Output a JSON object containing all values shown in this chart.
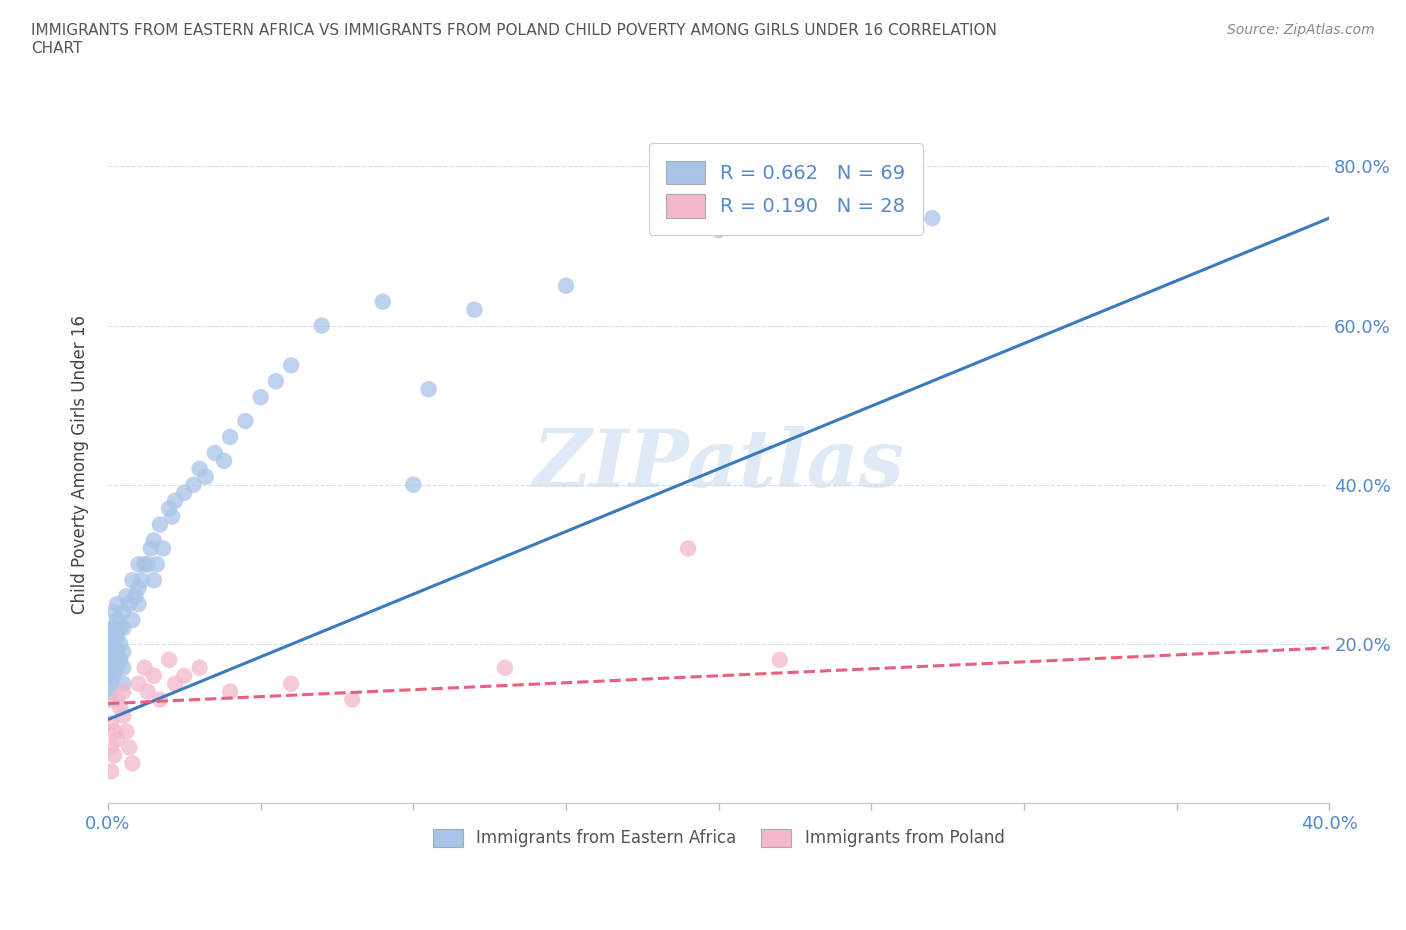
{
  "title": "IMMIGRANTS FROM EASTERN AFRICA VS IMMIGRANTS FROM POLAND CHILD POVERTY AMONG GIRLS UNDER 16 CORRELATION\nCHART",
  "source": "Source: ZipAtlas.com",
  "ylabel": "Child Poverty Among Girls Under 16",
  "xlim": [
    0.0,
    0.4
  ],
  "ylim": [
    0.0,
    0.85
  ],
  "xticks": [
    0.0,
    0.05,
    0.1,
    0.15,
    0.2,
    0.25,
    0.3,
    0.35,
    0.4
  ],
  "xticklabels": [
    "0.0%",
    "",
    "",
    "",
    "",
    "",
    "",
    "",
    "40.0%"
  ],
  "yticks": [
    0.0,
    0.2,
    0.4,
    0.6,
    0.8
  ],
  "yticklabels": [
    "",
    "20.0%",
    "40.0%",
    "60.0%",
    "80.0%"
  ],
  "R_eastern": 0.662,
  "N_eastern": 69,
  "R_poland": 0.19,
  "N_poland": 28,
  "color_eastern": "#a8c4e8",
  "color_poland": "#f4b8cc",
  "color_line_eastern": "#3a7abf",
  "color_line_poland": "#e8607a",
  "color_tick": "#5588cc",
  "watermark": "ZIPatlas",
  "watermark_color": "#ccddf0",
  "eastern_africa_x": [
    0.001,
    0.001,
    0.001,
    0.001,
    0.001,
    0.001,
    0.001,
    0.001,
    0.001,
    0.001,
    0.002,
    0.002,
    0.002,
    0.002,
    0.002,
    0.002,
    0.002,
    0.003,
    0.003,
    0.003,
    0.003,
    0.003,
    0.004,
    0.004,
    0.004,
    0.005,
    0.005,
    0.005,
    0.005,
    0.005,
    0.006,
    0.007,
    0.008,
    0.008,
    0.009,
    0.01,
    0.01,
    0.01,
    0.011,
    0.012,
    0.013,
    0.014,
    0.015,
    0.015,
    0.016,
    0.017,
    0.018,
    0.02,
    0.021,
    0.022,
    0.025,
    0.028,
    0.03,
    0.032,
    0.035,
    0.038,
    0.04,
    0.045,
    0.05,
    0.055,
    0.06,
    0.07,
    0.09,
    0.1,
    0.105,
    0.12,
    0.15,
    0.2,
    0.27
  ],
  "eastern_africa_y": [
    0.18,
    0.2,
    0.17,
    0.15,
    0.22,
    0.19,
    0.16,
    0.14,
    0.21,
    0.13,
    0.2,
    0.24,
    0.18,
    0.22,
    0.17,
    0.19,
    0.16,
    0.23,
    0.21,
    0.19,
    0.17,
    0.25,
    0.22,
    0.2,
    0.18,
    0.24,
    0.22,
    0.19,
    0.17,
    0.15,
    0.26,
    0.25,
    0.28,
    0.23,
    0.26,
    0.27,
    0.3,
    0.25,
    0.28,
    0.3,
    0.3,
    0.32,
    0.28,
    0.33,
    0.3,
    0.35,
    0.32,
    0.37,
    0.36,
    0.38,
    0.39,
    0.4,
    0.42,
    0.41,
    0.44,
    0.43,
    0.46,
    0.48,
    0.51,
    0.53,
    0.55,
    0.6,
    0.63,
    0.4,
    0.52,
    0.62,
    0.65,
    0.72,
    0.735
  ],
  "poland_x": [
    0.001,
    0.001,
    0.001,
    0.002,
    0.002,
    0.003,
    0.003,
    0.004,
    0.005,
    0.005,
    0.006,
    0.007,
    0.008,
    0.01,
    0.012,
    0.013,
    0.015,
    0.017,
    0.02,
    0.022,
    0.025,
    0.03,
    0.04,
    0.06,
    0.08,
    0.13,
    0.19,
    0.22
  ],
  "poland_y": [
    0.1,
    0.07,
    0.04,
    0.09,
    0.06,
    0.13,
    0.08,
    0.12,
    0.14,
    0.11,
    0.09,
    0.07,
    0.05,
    0.15,
    0.17,
    0.14,
    0.16,
    0.13,
    0.18,
    0.15,
    0.16,
    0.17,
    0.14,
    0.15,
    0.13,
    0.17,
    0.32,
    0.18
  ],
  "line_eastern_x0": 0.0,
  "line_eastern_y0": 0.105,
  "line_eastern_x1": 0.4,
  "line_eastern_y1": 0.735,
  "line_poland_x0": 0.0,
  "line_poland_y0": 0.125,
  "line_poland_x1": 0.4,
  "line_poland_y1": 0.195
}
